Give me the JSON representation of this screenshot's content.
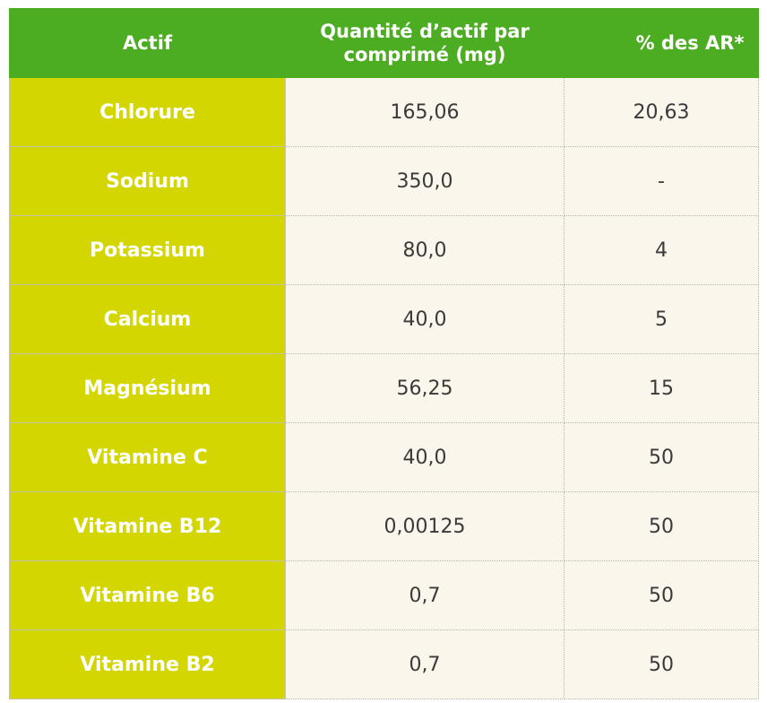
{
  "table": {
    "header": [
      "Actif",
      "Quantité d’actif par comprimé (mg)",
      "% des AR*"
    ],
    "rows": [
      [
        "Chlorure",
        "165,06",
        "20,63"
      ],
      [
        "Sodium",
        "350,0",
        "-"
      ],
      [
        "Potassium",
        "80,0",
        "4"
      ],
      [
        "Calcium",
        "40,0",
        "5"
      ],
      [
        "Magnésium",
        "56,25",
        "15"
      ],
      [
        "Vitamine C",
        "40,0",
        "50"
      ],
      [
        "Vitamine B12",
        "0,00125",
        "50"
      ],
      [
        "Vitamine B6",
        "0,7",
        "50"
      ],
      [
        "Vitamine B2",
        "0,7",
        "50"
      ]
    ]
  }
}
